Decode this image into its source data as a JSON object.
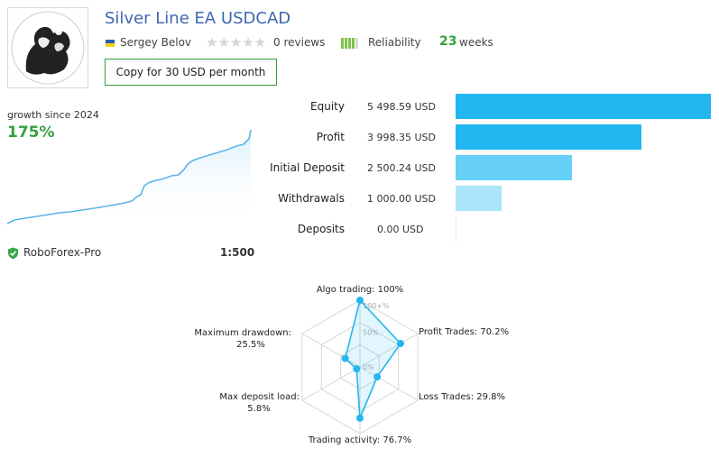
{
  "header": {
    "title": "Silver Line EA USDCAD",
    "author": "Sergey Belov",
    "reviews": "0 reviews",
    "reliability_label": "Reliability",
    "weeks_value": "23",
    "weeks_label": "weeks",
    "copy_button": "Copy for 30 USD per month"
  },
  "growth": {
    "label": "growth since 2024",
    "value": "175%"
  },
  "account": {
    "broker": "RoboForex-Pro",
    "leverage": "1:500"
  },
  "stats": [
    {
      "label": "Equity",
      "value": "5 498.59 USD",
      "amount": 5498.59,
      "color": "#22b7ef"
    },
    {
      "label": "Profit",
      "value": "3 998.35 USD",
      "amount": 3998.35,
      "color": "#22b7ef"
    },
    {
      "label": "Initial Deposit",
      "value": "2 500.24 USD",
      "amount": 2500.24,
      "color": "#66d0f7"
    },
    {
      "label": "Withdrawals",
      "value": "1 000.00 USD",
      "amount": 1000.0,
      "color": "#a9e4fb"
    },
    {
      "label": "Deposits",
      "value": "0.00 USD",
      "amount": 0.0,
      "color": "#cfeffd"
    }
  ],
  "radar": {
    "axes": [
      {
        "label": "Algo trading: 100%",
        "value": 100
      },
      {
        "label": "Profit Trades: 70.2%",
        "value": 70.2
      },
      {
        "label": "Loss Trades: 29.8%",
        "value": 29.8
      },
      {
        "label": "Trading activity: 76.7%",
        "value": 76.7
      },
      {
        "label": "Max deposit load: 5.8%",
        "label_line1": "Max deposit load:",
        "label_line2": "5.8%",
        "value": 5.8
      },
      {
        "label": "Maximum drawdown: 25.5%",
        "label_line1": "Maximum drawdown:",
        "label_line2": "25.5%",
        "value": 25.5
      }
    ],
    "scale_labels": [
      "100+%",
      "50%",
      "0%"
    ]
  },
  "colors": {
    "accent_green": "#32a23d",
    "title_blue": "#3d67b1",
    "line_blue": "#22b7ef"
  }
}
